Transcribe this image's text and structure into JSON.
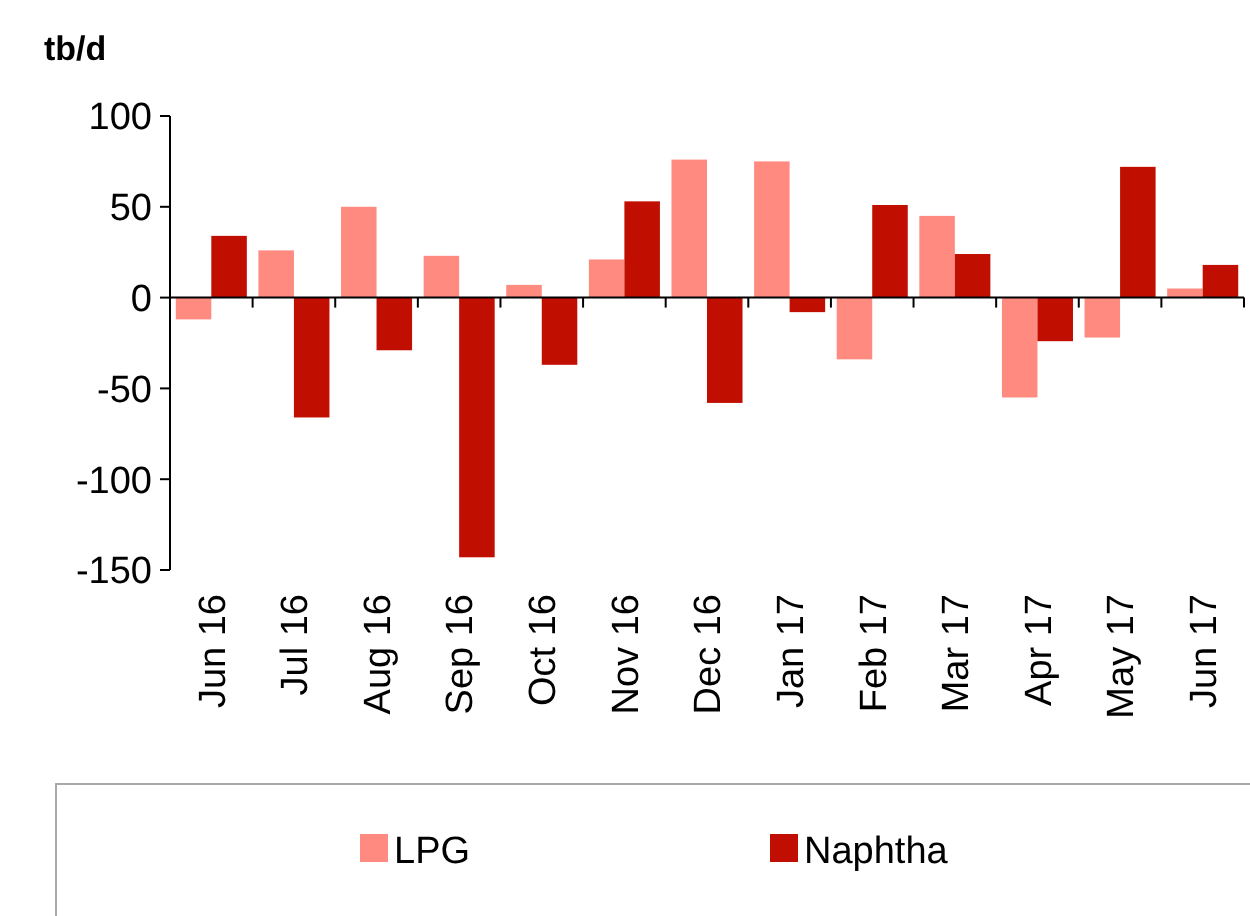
{
  "chart_data": {
    "type": "bar",
    "ylabel": "tb/d",
    "categories": [
      "Jun 16",
      "Jul 16",
      "Aug 16",
      "Sep 16",
      "Oct 16",
      "Nov 16",
      "Dec 16",
      "Jan 17",
      "Feb 17",
      "Mar 17",
      "Apr 17",
      "May 17",
      "Jun 17"
    ],
    "series": [
      {
        "name": "LPG",
        "color": "#ff8b80",
        "values": [
          -12,
          26,
          50,
          23,
          7,
          21,
          76,
          75,
          -34,
          45,
          -55,
          -22,
          5
        ]
      },
      {
        "name": "Naphtha",
        "color": "#c00f00",
        "values": [
          34,
          -66,
          -29,
          -143,
          -37,
          53,
          -58,
          -8,
          51,
          24,
          -24,
          72,
          18
        ]
      }
    ],
    "ylim": [
      -150,
      100
    ],
    "yticks": [
      -150,
      -100,
      -50,
      0,
      50,
      100
    ],
    "legend": "bottom"
  }
}
